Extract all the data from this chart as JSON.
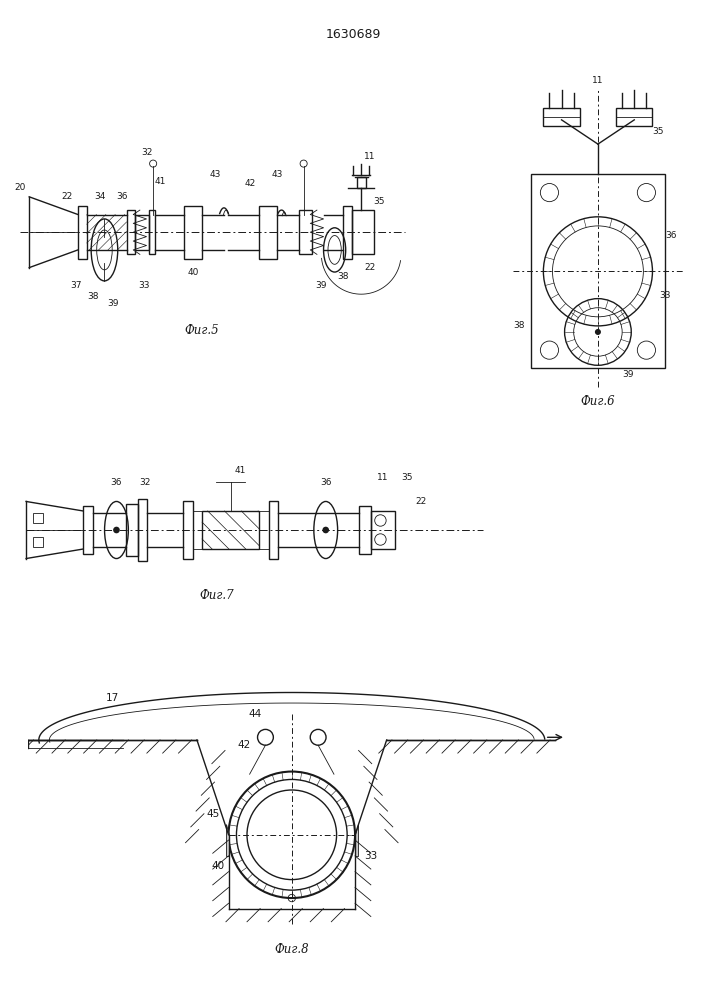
{
  "title": "1630689",
  "line_color": "#1a1a1a",
  "fig5_caption": "Фиг.5",
  "fig6_caption": "Фиг.6",
  "fig7_caption": "Фиг.7",
  "fig8_caption": "Фиг.8"
}
